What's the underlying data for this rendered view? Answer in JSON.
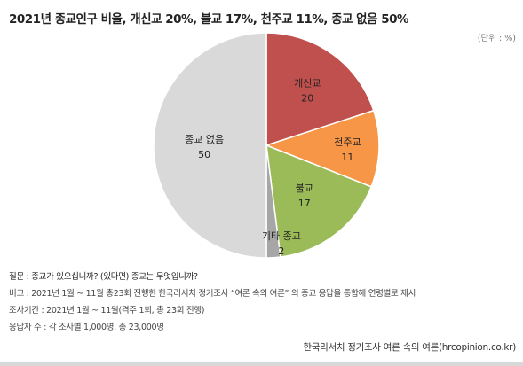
{
  "header": {
    "title": "2021년 종교인구 비율, 개신교 20%, 불교 17%, 천주교 11%, 종교 없음 50%",
    "unit": "(단위 : %)"
  },
  "chart_data": {
    "type": "pie",
    "slices": [
      {
        "label": "개신교",
        "value": 20,
        "color": "#c0504d"
      },
      {
        "label": "천주교",
        "value": 11,
        "color": "#f79646"
      },
      {
        "label": "불교",
        "value": 17,
        "color": "#9bbb59"
      },
      {
        "label": "기타 종교",
        "value": 2,
        "color": "#a6a6a6"
      },
      {
        "label": "종교 없음",
        "value": 50,
        "color": "#d9d9d9"
      }
    ]
  },
  "notes": {
    "question": "질문 : 종교가 있으십니까? (있다면) 종교는 무엇입니까?",
    "remark": "비고 : 2021년 1월 ~ 11월 총23회 진행한 한국리서치 정기조사 “여론 속의 여론” 의 종교 응답을 통합해 연령별로 제시",
    "period": "조사기간 : 2021년 1월 ~ 11월(격주 1회, 총 23회 진행)",
    "respondents": "응답자 수 : 각 조사별 1,000명, 총 23,000명"
  },
  "footer": {
    "source": "한국리서치 정기조사 여론 속의 여론(hrcopinion.co.kr)"
  }
}
